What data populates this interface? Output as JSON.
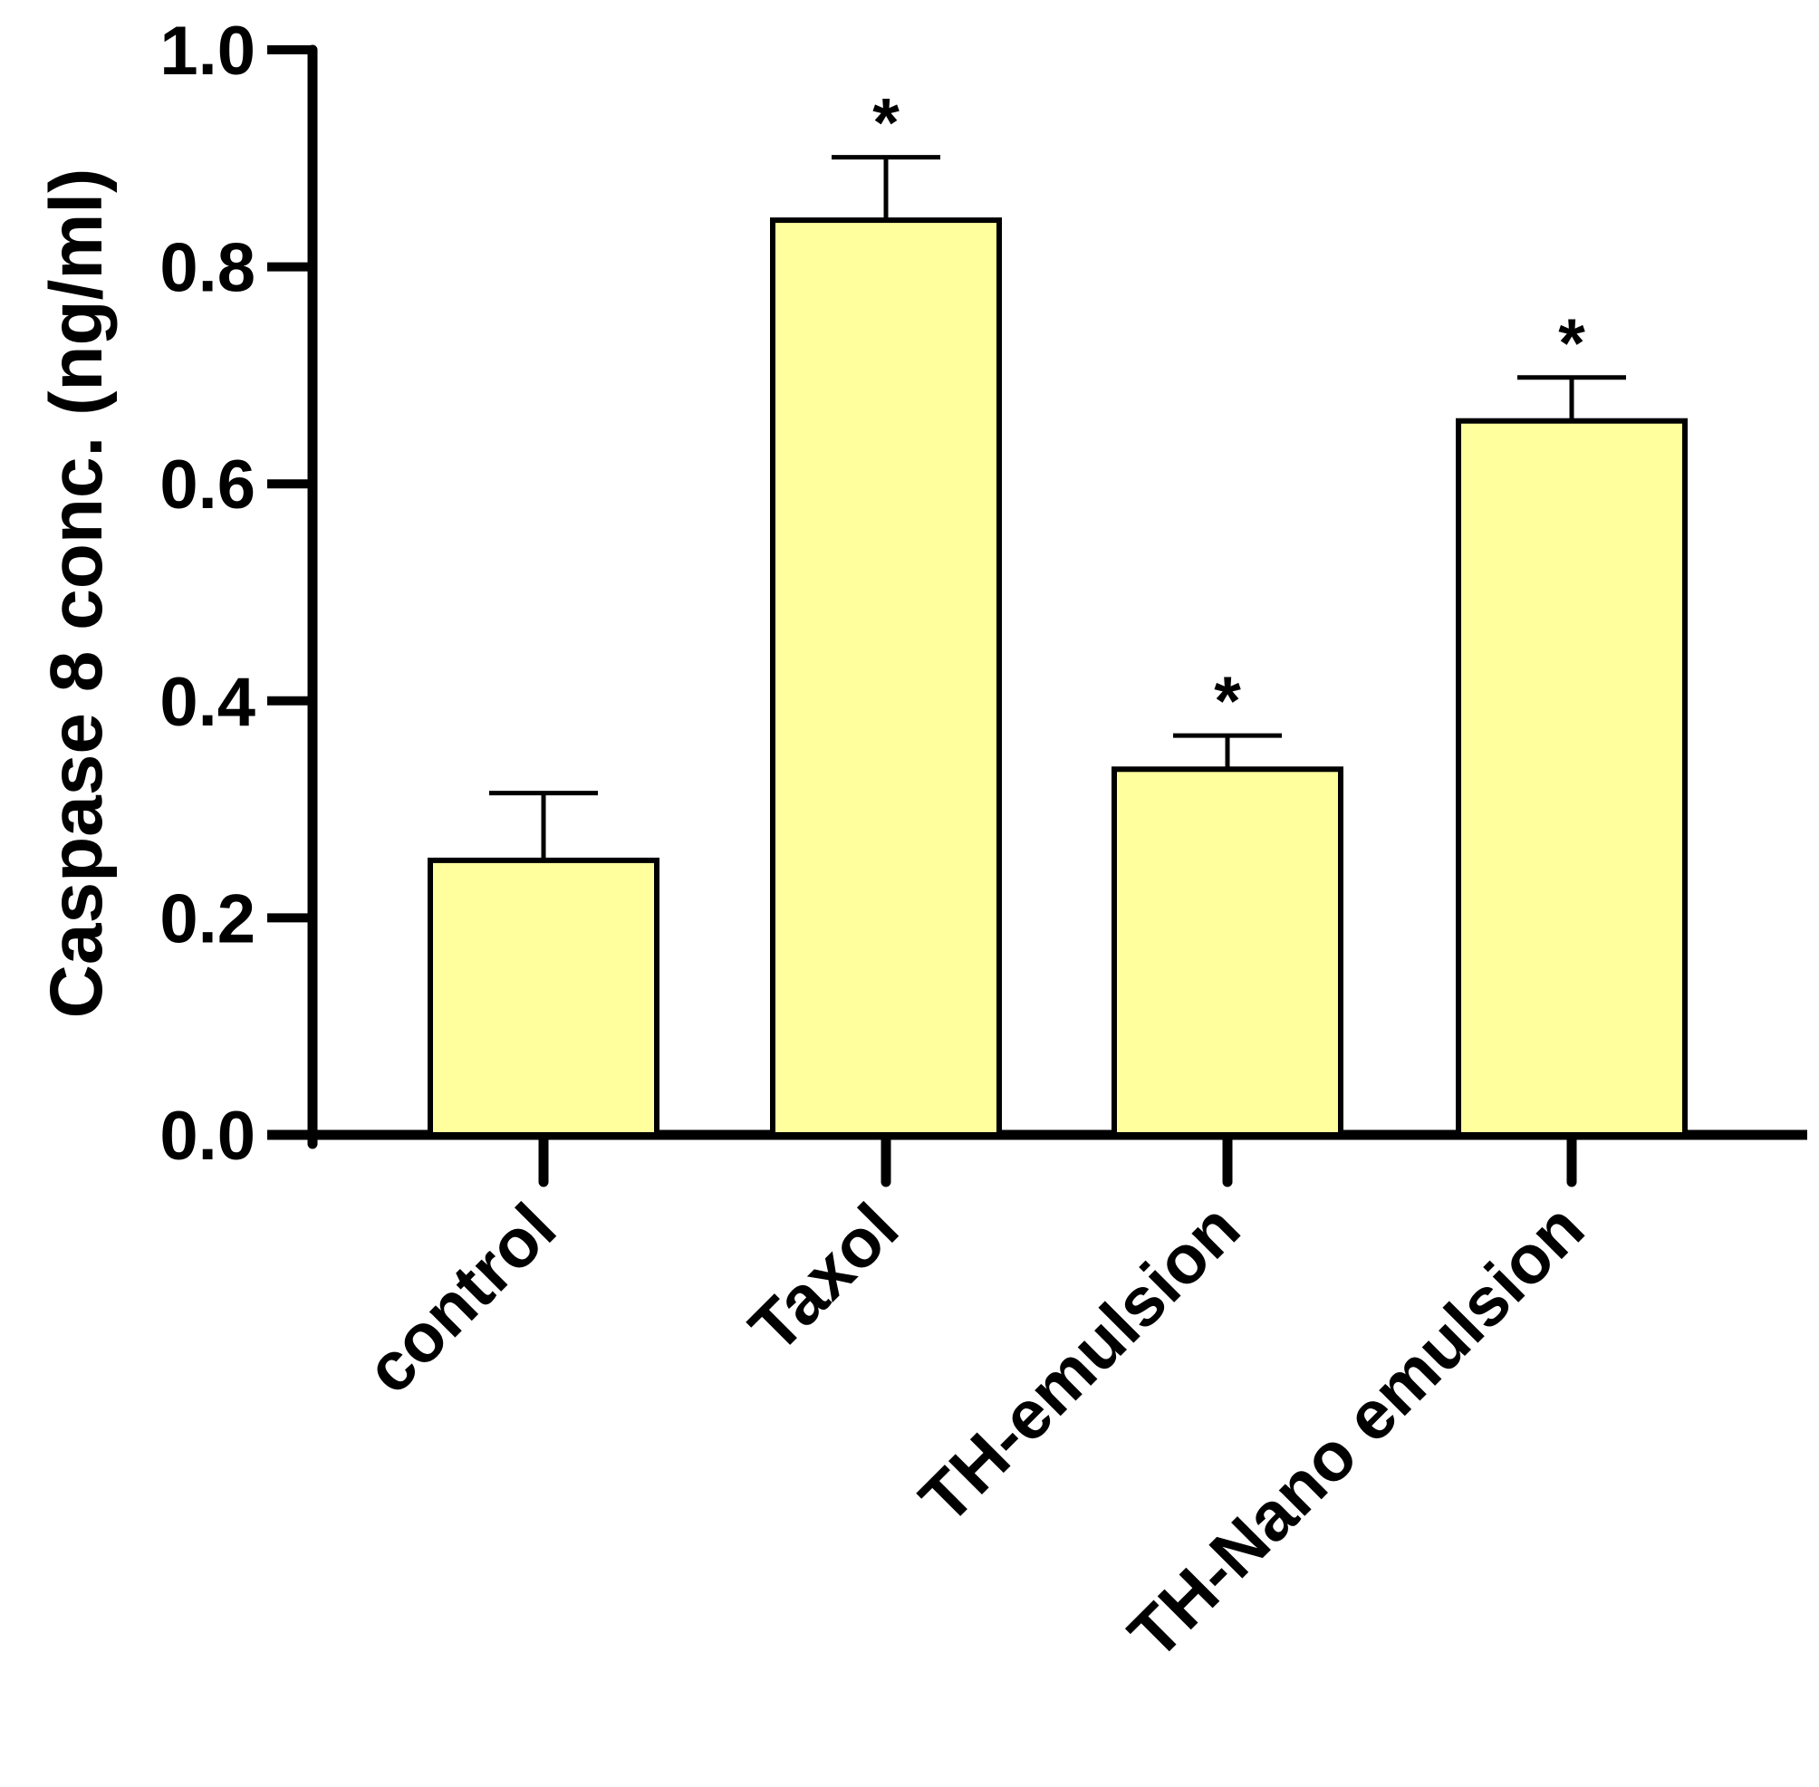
{
  "chart_data": {
    "type": "bar",
    "title": "",
    "xlabel": "",
    "ylabel": "Caspase 8 conc. (ng/ml)",
    "ylim": [
      0,
      1.0
    ],
    "yticks": [
      "0.0",
      "0.2",
      "0.4",
      "0.6",
      "0.8",
      "1.0"
    ],
    "categories": [
      "control",
      "Taxol",
      "TH-emulsion",
      "TH-Nano emulsion"
    ],
    "values": [
      0.253,
      0.843,
      0.337,
      0.658
    ],
    "errors": [
      0.062,
      0.058,
      0.031,
      0.04
    ],
    "significance": [
      "",
      "*",
      "*",
      "*"
    ],
    "bar_color": "#FFFF9E",
    "edge_color": "#000000",
    "grid": false
  }
}
